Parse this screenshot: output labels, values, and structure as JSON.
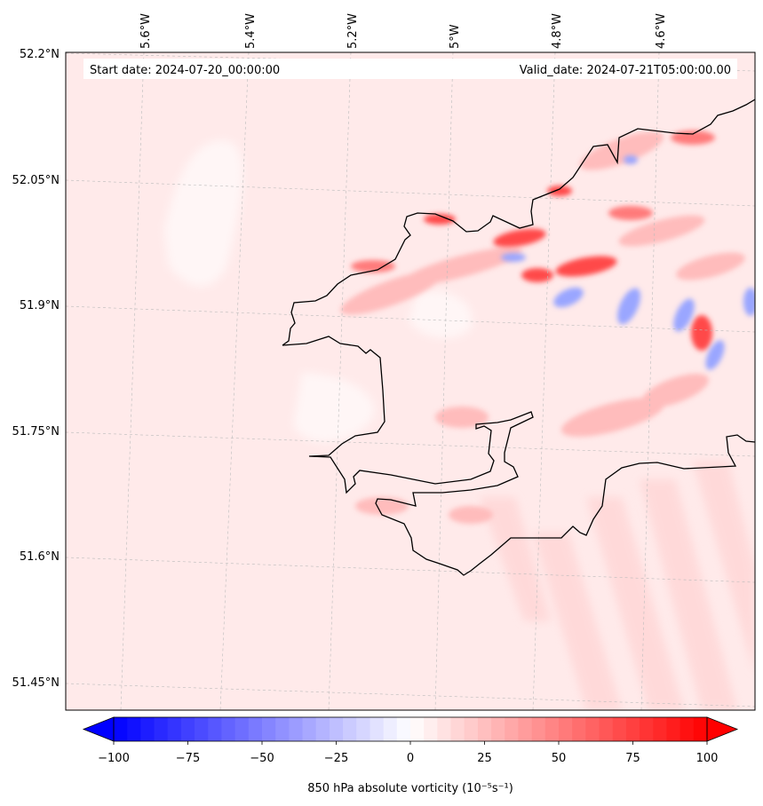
{
  "header": {
    "start_date": "Start date: 2024-07-20_00:00:00",
    "valid_date": "Valid_date: 2024-07-21T05:00:00.00"
  },
  "axes": {
    "lon_labels": [
      "5.6°W",
      "5.4°W",
      "5.2°W",
      "5°W",
      "4.8°W",
      "4.6°W"
    ],
    "lat_labels": [
      "52.2°N",
      "52.05°N",
      "51.9°N",
      "51.75°N",
      "51.6°N",
      "51.45°N"
    ]
  },
  "colorbar": {
    "label": "850 hPa absolute vorticity (10⁻⁵s⁻¹)",
    "tick_labels": [
      "−100",
      "−75",
      "−50",
      "−25",
      "0",
      "25",
      "50",
      "75",
      "100"
    ],
    "min": -100,
    "max": 100,
    "levels": 44,
    "low_color": "#0000ff",
    "mid_color": "#ffffff",
    "high_color": "#ff0000"
  },
  "map": {
    "background_color": "#ffeaea",
    "coastline_color": "#000000",
    "gridlines": true
  }
}
